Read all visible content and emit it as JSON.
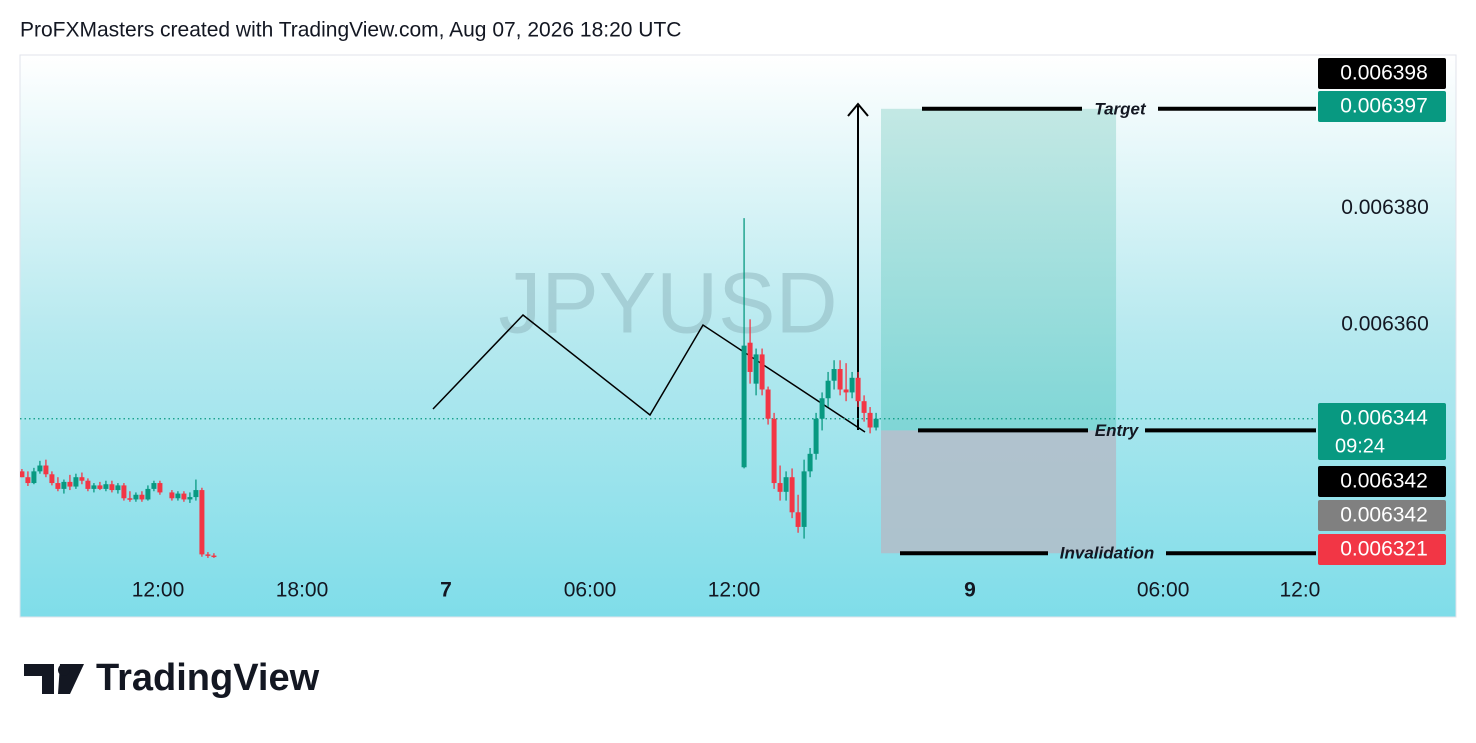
{
  "header": "ProFXMasters created with TradingView.com, Aug 07, 2026 18:20 UTC",
  "footer": "TradingView",
  "chart_data": {
    "type": "candlestick",
    "watermark": "JPYUSD",
    "up_color": "#089981",
    "down_color": "#f23645",
    "x": [
      6.33,
      6.58,
      6.83,
      7.08,
      7.33,
      7.58,
      7.83,
      8.08,
      8.33,
      8.58,
      8.83,
      9.08,
      9.33,
      9.58,
      9.83,
      10.08,
      10.33,
      10.58,
      10.83,
      11.08,
      11.33,
      11.58,
      11.83,
      12.08,
      12.58,
      12.83,
      13.08,
      13.33,
      13.58,
      13.83,
      14.08,
      14.33,
      36.42,
      36.67,
      36.92,
      37.17,
      37.42,
      37.67,
      37.92,
      38.17,
      38.42,
      38.67,
      38.92,
      39.17,
      39.42,
      39.67,
      39.92,
      40.17,
      40.42,
      40.67,
      40.92,
      41.17,
      41.42,
      41.67,
      41.92
    ],
    "open": [
      0.006335,
      0.006334,
      0.006333,
      0.006335,
      0.006336,
      0.0063345,
      0.006333,
      0.006332,
      0.0063332,
      0.0063324,
      0.006334,
      0.0063334,
      0.006332,
      0.0063326,
      0.006332,
      0.0063328,
      0.0063318,
      0.0063326,
      0.0063304,
      0.0063302,
      0.006331,
      0.0063302,
      0.006332,
      0.006333,
      0.0063314,
      0.0063304,
      0.0063312,
      0.0063302,
      0.0063306,
      0.0063318,
      0.0063208,
      0.0063206,
      0.0063357,
      0.006357,
      0.00635,
      0.006355,
      0.006349,
      0.006344,
      0.006333,
      0.0063315,
      0.006334,
      0.006328,
      0.0063255,
      0.006335,
      0.006338,
      0.006344,
      0.0063475,
      0.0063505,
      0.0063525,
      0.006349,
      0.0063485,
      0.006351,
      0.006347,
      0.006345,
      0.0063425
    ],
    "high": [
      0.0063354,
      0.006335,
      0.0063356,
      0.0063368,
      0.006337,
      0.006335,
      0.006334,
      0.0063336,
      0.0063344,
      0.0063346,
      0.0063348,
      0.0063338,
      0.006333,
      0.0063332,
      0.0063334,
      0.0063334,
      0.006333,
      0.006333,
      0.0063316,
      0.0063314,
      0.0063316,
      0.0063326,
      0.0063334,
      0.0063334,
      0.0063318,
      0.0063316,
      0.0063316,
      0.0063314,
      0.0063336,
      0.0063322,
      0.0063212,
      0.006321,
      0.0063783,
      0.006361,
      0.006356,
      0.006356,
      0.0063495,
      0.006345,
      0.006336,
      0.006335,
      0.0063355,
      0.006331,
      0.006337,
      0.006339,
      0.006345,
      0.0063485,
      0.006352,
      0.006354,
      0.006354,
      0.0063535,
      0.006352,
      0.006352,
      0.006348,
      0.006346,
      0.006345
    ],
    "low": [
      0.006334,
      0.0063325,
      0.0063328,
      0.0063346,
      0.006334,
      0.0063326,
      0.0063316,
      0.0063312,
      0.0063318,
      0.006332,
      0.0063328,
      0.0063316,
      0.0063314,
      0.0063318,
      0.0063316,
      0.0063314,
      0.0063312,
      0.00633,
      0.0063298,
      0.0063298,
      0.0063298,
      0.00633,
      0.0063316,
      0.006331,
      0.00633,
      0.00633,
      0.0063298,
      0.0063296,
      0.00633,
      0.0063204,
      0.0063202,
      0.0063202,
      0.0063355,
      0.00635,
      0.006348,
      0.006348,
      0.006343,
      0.006332,
      0.00633,
      0.00633,
      0.006327,
      0.0063245,
      0.0063235,
      0.006334,
      0.006337,
      0.006342,
      0.006346,
      0.006349,
      0.006348,
      0.006347,
      0.0063475,
      0.006346,
      0.0063435,
      0.0063415,
      0.006342
    ],
    "close": [
      0.006334,
      0.006333,
      0.006335,
      0.006336,
      0.0063345,
      0.006333,
      0.006332,
      0.0063332,
      0.0063324,
      0.006334,
      0.0063334,
      0.006332,
      0.0063326,
      0.006332,
      0.0063328,
      0.0063318,
      0.0063326,
      0.0063304,
      0.0063302,
      0.006331,
      0.0063302,
      0.006332,
      0.006333,
      0.0063314,
      0.0063304,
      0.0063312,
      0.0063302,
      0.0063306,
      0.0063318,
      0.0063208,
      0.0063206,
      0.0063204,
      0.0063565,
      0.006352,
      0.006355,
      0.006349,
      0.006344,
      0.006333,
      0.0063315,
      0.006334,
      0.006328,
      0.0063255,
      0.006335,
      0.006338,
      0.006344,
      0.0063475,
      0.0063505,
      0.0063525,
      0.006349,
      0.0063485,
      0.006351,
      0.006347,
      0.006345,
      0.0063425,
      0.006344
    ],
    "xlim": [
      6.25,
      60.25
    ],
    "xticks": [
      {
        "value": 12,
        "label": "12:00"
      },
      {
        "value": 18,
        "label": "18:00"
      },
      {
        "value": 24,
        "label": "7"
      },
      {
        "value": 30,
        "label": "06:00"
      },
      {
        "value": 36,
        "label": "12:00"
      },
      {
        "value": 45.83,
        "label": "9"
      },
      {
        "value": 53.88,
        "label": "06:00"
      },
      {
        "value": 59.58,
        "label": "12:0"
      }
    ],
    "ylim": [
      0.0063195,
      0.0064062
    ],
    "yticks": [
      {
        "value": 0.00638,
        "label": "0.006380"
      },
      {
        "value": 0.00636,
        "label": "0.006360"
      }
    ],
    "last_price": 0.006344,
    "countdown": "09:24",
    "price_labels": [
      {
        "value": 0.006398,
        "label": "0.006398",
        "color": "#000000"
      },
      {
        "value": 0.006397,
        "label": "0.006397",
        "color": "#089981"
      },
      {
        "value": 0.006344,
        "label": "0.006344",
        "color": "#089981"
      },
      {
        "value": 0.006342,
        "label": "0.006342",
        "color": "#000000"
      },
      {
        "value": 0.006342,
        "label": "0.006342",
        "color": "#808080"
      },
      {
        "value": 0.006321,
        "label": "0.006321",
        "color": "#f23645"
      }
    ],
    "position": {
      "x": [
        42.125,
        51.92
      ],
      "target": {
        "value": 0.006397,
        "label": "Target"
      },
      "entry": {
        "value": 0.006342,
        "label": "Entry"
      },
      "stop": {
        "value": 0.006321,
        "label": "Invalidation"
      }
    }
  }
}
